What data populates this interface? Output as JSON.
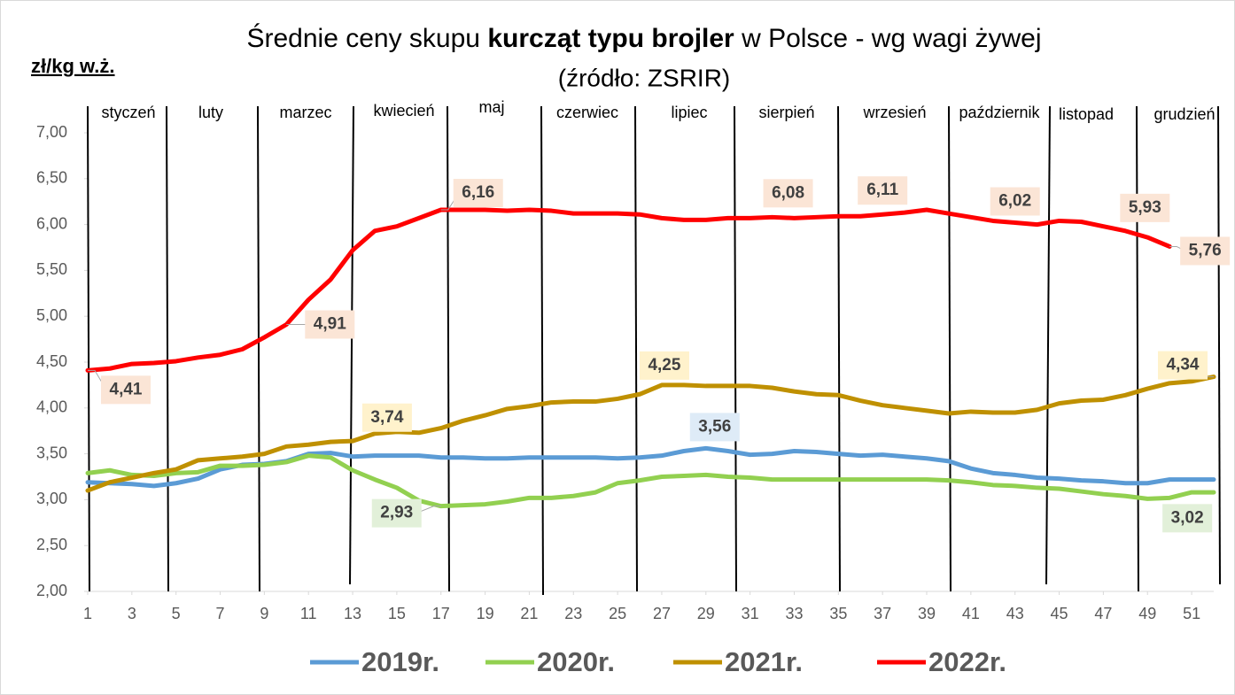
{
  "chart_data": {
    "type": "line",
    "title_parts": [
      "Średnie ceny skupu ",
      "kurcząt typu brojler",
      " w Polsce - wg wagi żywej"
    ],
    "subtitle": "(źródło: ZSRIR)",
    "y_label": "zł/kg w.ż.",
    "months": [
      "styczeń",
      "luty",
      "marzec",
      "kwiecień",
      "maj",
      "czerwiec",
      "lipiec",
      "sierpień",
      "wrzesień",
      "październik",
      "listopad",
      "grudzień"
    ],
    "x": [
      1,
      2,
      3,
      4,
      5,
      6,
      7,
      8,
      9,
      10,
      11,
      12,
      13,
      14,
      15,
      16,
      17,
      18,
      19,
      20,
      21,
      22,
      23,
      24,
      25,
      26,
      27,
      28,
      29,
      30,
      31,
      32,
      33,
      34,
      35,
      36,
      37,
      38,
      39,
      40,
      41,
      42,
      43,
      44,
      45,
      46,
      47,
      48,
      49,
      50,
      51,
      52
    ],
    "xlim": [
      1,
      52
    ],
    "xticks": [
      1,
      3,
      5,
      7,
      9,
      11,
      13,
      15,
      17,
      19,
      21,
      23,
      25,
      27,
      29,
      31,
      33,
      35,
      37,
      39,
      41,
      43,
      45,
      47,
      49,
      51
    ],
    "ylim": [
      2,
      7
    ],
    "yticks": [
      {
        "value": 2,
        "label": "2,00"
      },
      {
        "value": 2.5,
        "label": "2,50"
      },
      {
        "value": 3,
        "label": "3,00"
      },
      {
        "value": 3.5,
        "label": "3,50"
      },
      {
        "value": 4,
        "label": "4,00"
      },
      {
        "value": 4.5,
        "label": "4,50"
      },
      {
        "value": 5,
        "label": "5,00"
      },
      {
        "value": 5.5,
        "label": "5,50"
      },
      {
        "value": 6,
        "label": "6,00"
      },
      {
        "value": 6.5,
        "label": "6,50"
      },
      {
        "value": 7,
        "label": "7,00"
      }
    ],
    "series": [
      {
        "name": "2019r.",
        "color": "#5b9bd5",
        "values": [
          3.19,
          3.18,
          3.17,
          3.15,
          3.18,
          3.23,
          3.33,
          3.38,
          3.39,
          3.42,
          3.5,
          3.51,
          3.47,
          3.48,
          3.48,
          3.48,
          3.46,
          3.46,
          3.45,
          3.45,
          3.46,
          3.46,
          3.46,
          3.46,
          3.45,
          3.46,
          3.48,
          3.53,
          3.56,
          3.53,
          3.49,
          3.5,
          3.53,
          3.52,
          3.5,
          3.48,
          3.49,
          3.47,
          3.45,
          3.42,
          3.34,
          3.29,
          3.27,
          3.24,
          3.23,
          3.21,
          3.2,
          3.18,
          3.18,
          3.22,
          3.22,
          3.22
        ],
        "value_labels": [
          null,
          null,
          null,
          null,
          null,
          null,
          null,
          null,
          null,
          null,
          null,
          null,
          null,
          null,
          null,
          null,
          null,
          null,
          null,
          null,
          null,
          null,
          null,
          null,
          null,
          null,
          null,
          null,
          "3,56",
          null,
          null,
          null,
          null,
          null,
          null,
          null,
          null,
          null,
          null,
          null,
          null,
          null,
          null,
          null,
          null,
          null,
          null,
          null,
          null,
          null,
          null,
          null
        ]
      },
      {
        "name": "2020r.",
        "color": "#92d050",
        "values": [
          3.29,
          3.32,
          3.27,
          3.26,
          3.29,
          3.3,
          3.37,
          3.37,
          3.38,
          3.41,
          3.48,
          3.46,
          3.32,
          3.22,
          3.13,
          2.99,
          2.93,
          2.94,
          2.95,
          2.98,
          3.02,
          3.02,
          3.04,
          3.08,
          3.18,
          3.21,
          3.25,
          3.26,
          3.27,
          3.25,
          3.24,
          3.22,
          3.22,
          3.22,
          3.22,
          3.22,
          3.22,
          3.22,
          3.22,
          3.21,
          3.19,
          3.16,
          3.15,
          3.13,
          3.12,
          3.09,
          3.06,
          3.04,
          3.01,
          3.02,
          3.08,
          3.08
        ],
        "value_labels": [
          null,
          null,
          null,
          null,
          null,
          null,
          null,
          null,
          null,
          null,
          null,
          null,
          null,
          null,
          null,
          null,
          "2,93",
          null,
          null,
          null,
          null,
          null,
          null,
          null,
          null,
          null,
          null,
          null,
          null,
          null,
          null,
          null,
          null,
          null,
          null,
          null,
          null,
          null,
          null,
          null,
          null,
          null,
          null,
          null,
          null,
          null,
          null,
          null,
          null,
          "3,02",
          null,
          null
        ]
      },
      {
        "name": "2021r.",
        "color": "#bf9000",
        "values": [
          3.1,
          3.19,
          3.24,
          3.29,
          3.33,
          3.43,
          3.45,
          3.47,
          3.5,
          3.58,
          3.6,
          3.63,
          3.64,
          3.72,
          3.74,
          3.73,
          3.78,
          3.86,
          3.92,
          3.99,
          4.02,
          4.06,
          4.07,
          4.07,
          4.1,
          4.15,
          4.25,
          4.25,
          4.24,
          4.24,
          4.24,
          4.22,
          4.18,
          4.15,
          4.14,
          4.08,
          4.03,
          4.0,
          3.97,
          3.94,
          3.96,
          3.95,
          3.95,
          3.98,
          4.05,
          4.08,
          4.09,
          4.14,
          4.21,
          4.27,
          4.29,
          4.34
        ],
        "value_labels": [
          null,
          null,
          null,
          null,
          null,
          null,
          null,
          null,
          null,
          null,
          null,
          null,
          null,
          null,
          "3,74",
          null,
          null,
          null,
          null,
          null,
          null,
          null,
          null,
          null,
          null,
          null,
          "4,25",
          null,
          null,
          null,
          null,
          null,
          null,
          null,
          null,
          null,
          null,
          null,
          null,
          null,
          null,
          null,
          null,
          null,
          null,
          null,
          null,
          null,
          null,
          null,
          null,
          "4,34"
        ]
      },
      {
        "name": "2022r.",
        "color": "#ff0000",
        "values": [
          4.41,
          4.43,
          4.48,
          4.49,
          4.51,
          4.55,
          4.58,
          4.64,
          4.77,
          4.91,
          5.18,
          5.4,
          5.72,
          5.93,
          5.98,
          6.07,
          6.16,
          6.16,
          6.16,
          6.15,
          6.16,
          6.15,
          6.12,
          6.12,
          6.12,
          6.11,
          6.07,
          6.05,
          6.05,
          6.07,
          6.07,
          6.08,
          6.07,
          6.08,
          6.09,
          6.09,
          6.11,
          6.13,
          6.16,
          6.12,
          6.08,
          6.04,
          6.02,
          6.0,
          6.04,
          6.03,
          5.98,
          5.93,
          5.86,
          5.76,
          null,
          null
        ],
        "value_labels": [
          "4,41",
          null,
          null,
          null,
          null,
          null,
          null,
          null,
          null,
          "4,91",
          null,
          null,
          null,
          null,
          null,
          null,
          "6,16",
          null,
          null,
          null,
          null,
          null,
          null,
          null,
          null,
          null,
          null,
          null,
          null,
          null,
          null,
          "6,08",
          null,
          null,
          null,
          null,
          "6,11",
          null,
          null,
          null,
          null,
          null,
          "6,02",
          null,
          null,
          null,
          null,
          "5,93",
          null,
          "5,76",
          null,
          null
        ]
      }
    ]
  }
}
